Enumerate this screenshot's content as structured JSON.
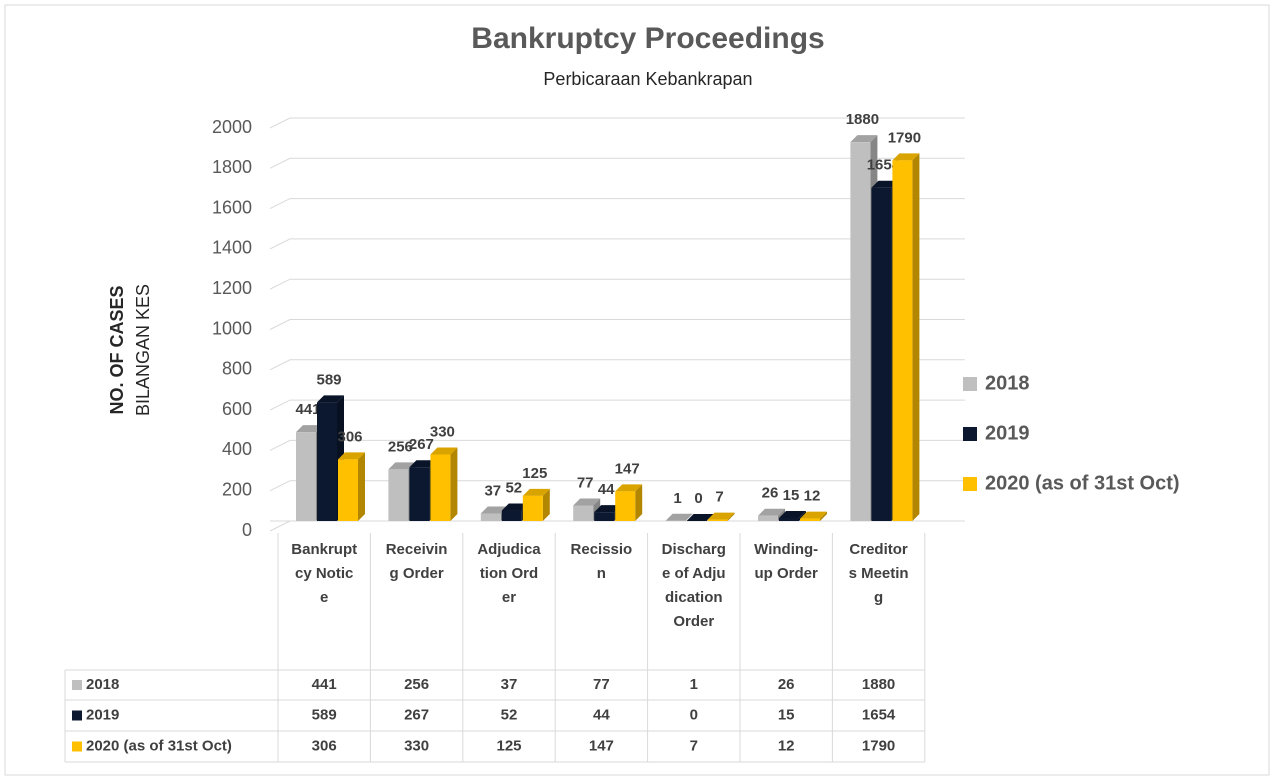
{
  "chart_data": {
    "type": "bar3d",
    "title": "Bankruptcy Proceedings",
    "subtitle": "Perbicaraan Kebankrapan",
    "y_axis_label": "NO. OF CASES",
    "y_axis_sublabel": "BILANGAN KES",
    "categories": [
      "Bankruptcy Notice",
      "Receiving Order",
      "Adjudication Order",
      "Recission",
      "Discharge of Adjudication Order",
      "Winding-up Order",
      "Creditors Meeting"
    ],
    "series": [
      {
        "name": "2018",
        "color": "#bfbfbf",
        "values": [
          441,
          256,
          37,
          77,
          1,
          26,
          1880
        ]
      },
      {
        "name": "2019",
        "color": "#0c1830",
        "values": [
          589,
          267,
          52,
          44,
          0,
          15,
          1654
        ]
      },
      {
        "name": "2020 (as of 31st Oct)",
        "color": "#ffc000",
        "values": [
          306,
          330,
          125,
          147,
          7,
          12,
          1790
        ]
      }
    ],
    "ylim": [
      0,
      2000
    ],
    "yticks": [
      0,
      200,
      400,
      600,
      800,
      1000,
      1200,
      1400,
      1600,
      1800,
      2000
    ],
    "grid": true,
    "legend": "right",
    "data_table": true
  }
}
